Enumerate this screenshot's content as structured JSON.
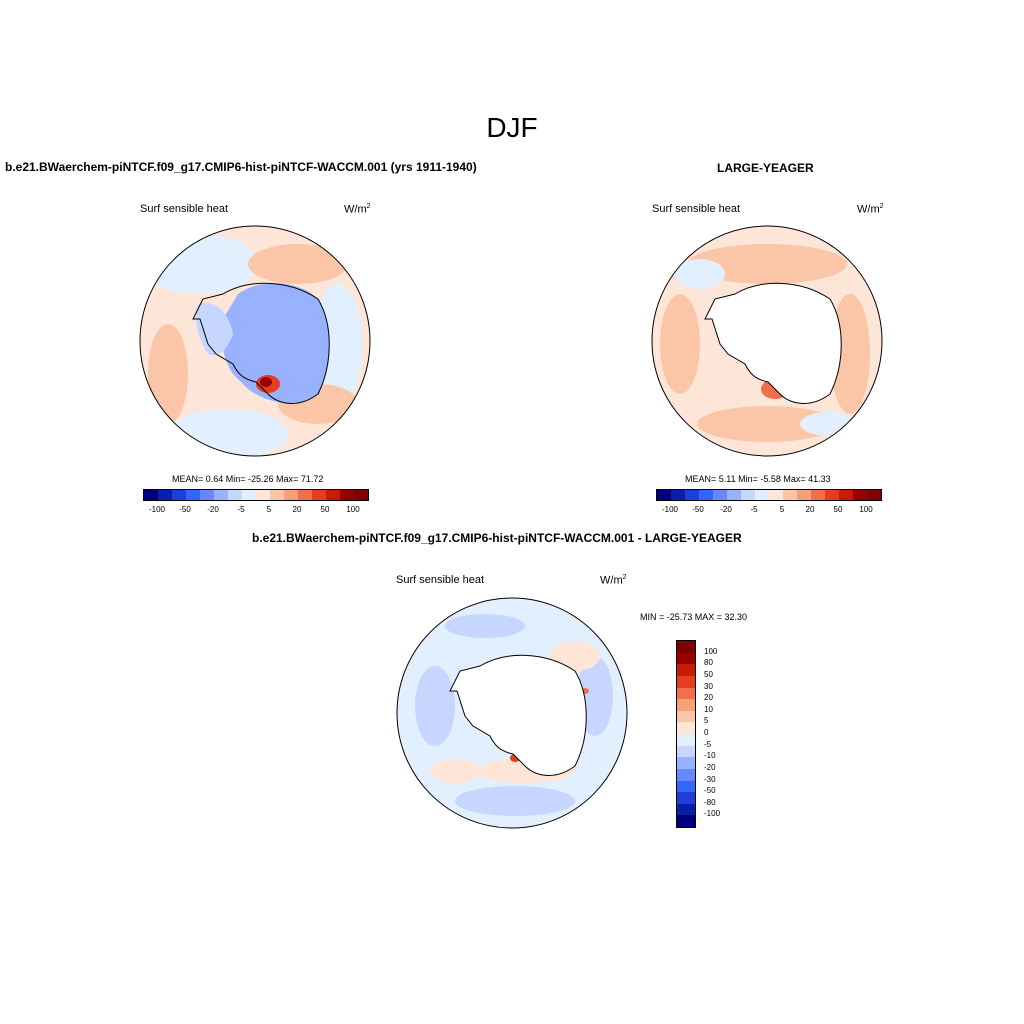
{
  "title": "DJF",
  "colors": [
    "#00007f",
    "#0a1fa8",
    "#1f3fd6",
    "#3366ff",
    "#6688ff",
    "#99b2ff",
    "#c6d6ff",
    "#e2efff",
    "#fde6d8",
    "#fbc6a8",
    "#f79f7a",
    "#f0704d",
    "#e53e1c",
    "#cc1a0a",
    "#990000",
    "#7f0000"
  ],
  "panels": [
    {
      "title": "b.e21.BWaerchem-piNTCF.f09_g17.CMIP6-hist-piNTCF-WACCM.001 (yrs 1911-1940)",
      "variable": "Surf sensible heat",
      "units": "W/m",
      "units_sup": "2",
      "stats": "MEAN=   0.64  Min= -25.26  Max=  71.72",
      "colorbar_labels": [
        "-100",
        "-50",
        "-20",
        "-5",
        "5",
        "20",
        "50",
        "100"
      ]
    },
    {
      "title": "LARGE-YEAGER",
      "variable": "Surf sensible heat",
      "units": "W/m",
      "units_sup": "2",
      "stats": "MEAN=   5.11  Min=  -5.58  Max=  41.33",
      "colorbar_labels": [
        "-100",
        "-50",
        "-20",
        "-5",
        "5",
        "20",
        "50",
        "100"
      ]
    },
    {
      "title": "b.e21.BWaerchem-piNTCF.f09_g17.CMIP6-hist-piNTCF-WACCM.001 - LARGE-YEAGER",
      "variable": "Surf sensible heat",
      "units": "W/m",
      "units_sup": "2",
      "stats": "MIN = -25.73 MAX =  32.30",
      "colorbar_labels": [
        "100",
        "80",
        "50",
        "30",
        "20",
        "10",
        "5",
        "0",
        "-5",
        "-10",
        "-20",
        "-30",
        "-50",
        "-80",
        "-100"
      ]
    }
  ]
}
